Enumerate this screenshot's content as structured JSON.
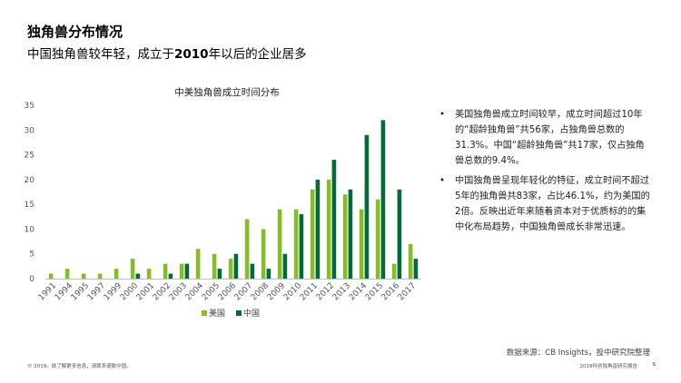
{
  "header": {
    "title": "独角兽分布情况",
    "subtitle_prefix": "中国独角兽较年轻，成立于",
    "subtitle_year": "2010",
    "subtitle_suffix": "年以后的企业居多"
  },
  "notes": [
    {
      "bullet": "•",
      "text": "美国独角兽成立时间较早，成立时间超过10年的“超龄独角兽”共56家，占独角兽总数的31.3%。中国“超龄独角兽”共17家，仅占独角兽总数的9.4%。"
    },
    {
      "bullet": "•",
      "text": "中国独角兽呈现年轻化的特征，成立时间不超过5年的独角兽共83家，占比46.1%，约为美国的2倍。反映出近年来随着资本对于优质标的的集中化布局趋势，中国独角兽成长非常迅速。"
    }
  ],
  "footer": {
    "source": "数据来源：CB Insights，投中研究院整理",
    "left": "© 2019。欲了解更多信息，请联系德勤中国。",
    "right": "2019科创独角兽研究报告",
    "page": "6"
  },
  "colors": {
    "us": "#86bc25",
    "cn": "#046a38",
    "axis_text": "#555555"
  },
  "chart_data": {
    "type": "bar",
    "title": "中美独角兽成立时间分布",
    "categories": [
      "1991",
      "1994",
      "1995",
      "1997",
      "1999",
      "2000",
      "2001",
      "2002",
      "2003",
      "2004",
      "2005",
      "2006",
      "2007",
      "2008",
      "2009",
      "2010",
      "2011",
      "2012",
      "2013",
      "2014",
      "2015",
      "2016",
      "2017"
    ],
    "series": [
      {
        "name": "美国",
        "values": [
          1,
          2,
          1,
          1,
          2,
          4,
          2,
          3,
          3,
          6,
          5,
          4,
          12,
          10,
          14,
          14,
          18,
          20,
          17,
          14,
          16,
          3,
          7
        ]
      },
      {
        "name": "中国",
        "values": [
          0,
          0,
          0,
          0,
          0,
          1,
          0,
          1,
          3,
          0,
          2,
          5,
          3,
          2,
          5,
          13,
          20,
          24,
          18,
          29,
          32,
          18,
          4
        ]
      }
    ],
    "ylim": [
      0,
      35
    ],
    "yticks": [
      0,
      5,
      10,
      15,
      20,
      25,
      30,
      35
    ],
    "grid": false,
    "legend": "bottom"
  }
}
